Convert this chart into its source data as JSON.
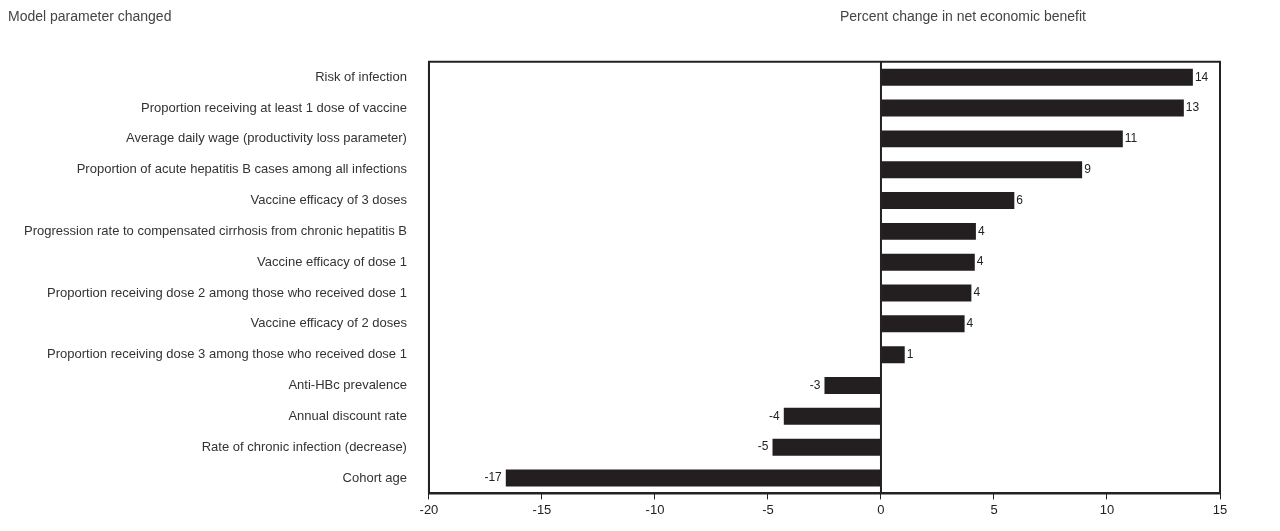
{
  "chart_data": {
    "type": "bar",
    "orientation": "horizontal",
    "ylabel": "Model parameter changed",
    "xlabel": "Percent change in net economic benefit",
    "categories": [
      "Risk of infection",
      "Proportion receiving at least 1 dose of vaccine",
      "Average daily wage (productivity loss parameter)",
      "Proportion of acute hepatitis B cases among all infections",
      "Vaccine efficacy of 3 doses",
      "Progression rate to compensated cirrhosis from chronic hepatitis B",
      "Vaccine efficacy of dose 1",
      "Proportion receiving dose 2 among those who received dose 1",
      "Vaccine efficacy of 2 doses",
      "Proportion receiving dose 3 among those who received dose 1",
      "Anti-HBc prevalence",
      "Annual discount rate",
      "Rate of chronic infection (decrease)",
      "Cohort age"
    ],
    "values": [
      13.8,
      13.4,
      10.7,
      8.9,
      5.9,
      4.2,
      4.15,
      4.0,
      3.7,
      1.05,
      -2.5,
      -4.3,
      -4.8,
      -16.6
    ],
    "value_labels": [
      "14",
      "13",
      "11",
      "9",
      "6",
      "4",
      "4",
      "4",
      "4",
      "1",
      "-3",
      "-4",
      "-5",
      "-17"
    ],
    "color": "#231f20",
    "xlim": [
      -20,
      15
    ],
    "xticks": [
      -20,
      -15,
      -10,
      -5,
      0,
      5,
      10,
      15
    ],
    "ref_lines": [
      {
        "axis": "x",
        "value": 0,
        "color": "#222222"
      }
    ],
    "legend": false
  }
}
